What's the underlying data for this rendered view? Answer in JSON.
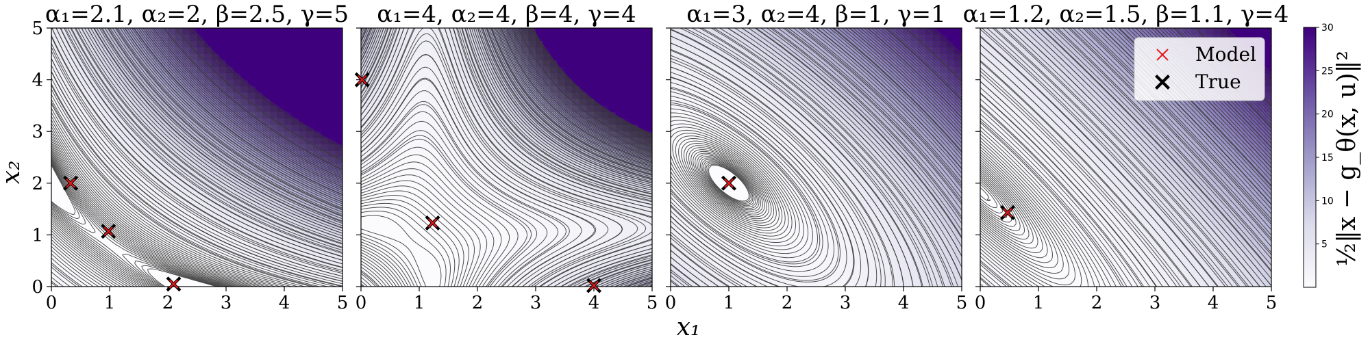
{
  "chart_data": [
    {
      "type": "contour",
      "title": "α₁=2.1, α₂=2, β=2.5, γ=5",
      "params": {
        "alpha1": 2.1,
        "alpha2": 2,
        "beta": 2.5,
        "gamma": 5
      },
      "xlim": [
        0,
        5
      ],
      "ylim": [
        0,
        5
      ],
      "x_ticks": [
        0,
        1,
        2,
        3,
        4,
        5
      ],
      "y_ticks": [
        0,
        1,
        2,
        3,
        4,
        5
      ],
      "points": [
        {
          "x": 0.33,
          "y": 2.0
        },
        {
          "x": 0.98,
          "y": 1.07
        },
        {
          "x": 2.1,
          "y": 0.05
        }
      ]
    },
    {
      "type": "contour",
      "title": "α₁=4, α₂=4, β=4, γ=4",
      "params": {
        "alpha1": 4,
        "alpha2": 4,
        "beta": 4,
        "gamma": 4
      },
      "xlim": [
        0,
        5
      ],
      "ylim": [
        0,
        5
      ],
      "x_ticks": [
        0,
        1,
        2,
        3,
        4,
        5
      ],
      "y_ticks": [
        0,
        1,
        2,
        3,
        4,
        5
      ],
      "points": [
        {
          "x": 0.02,
          "y": 4.0
        },
        {
          "x": 1.23,
          "y": 1.23
        },
        {
          "x": 4.0,
          "y": 0.02
        }
      ]
    },
    {
      "type": "contour",
      "title": "α₁=3, α₂=4, β=1, γ=1",
      "params": {
        "alpha1": 3,
        "alpha2": 4,
        "beta": 1,
        "gamma": 1
      },
      "xlim": [
        0,
        5
      ],
      "ylim": [
        0,
        5
      ],
      "x_ticks": [
        0,
        1,
        2,
        3,
        4,
        5
      ],
      "y_ticks": [
        0,
        1,
        2,
        3,
        4,
        5
      ],
      "points": [
        {
          "x": 1.0,
          "y": 2.0
        }
      ]
    },
    {
      "type": "contour",
      "title": "α₁=1.2, α₂=1.5, β=1.1, γ=4",
      "params": {
        "alpha1": 1.2,
        "alpha2": 1.5,
        "beta": 1.1,
        "gamma": 4
      },
      "xlim": [
        0,
        5
      ],
      "ylim": [
        0,
        5
      ],
      "x_ticks": [
        0,
        1,
        2,
        3,
        4,
        5
      ],
      "y_ticks": [
        0,
        1,
        2,
        3,
        4,
        5
      ],
      "points": [
        {
          "x": 0.47,
          "y": 1.43
        }
      ]
    }
  ],
  "xlabel": "x₁",
  "ylabel": "x₂",
  "legend": {
    "position": "upper-right of last panel",
    "entries": [
      {
        "label": "Model",
        "marker": "thin-x",
        "color": "#e31a1c"
      },
      {
        "label": "True",
        "marker": "thick-x",
        "color": "#000000"
      }
    ]
  },
  "colorbar": {
    "label": "½‖x − g_θ(x, u)‖²",
    "range": [
      0,
      30
    ],
    "ticks": [
      5,
      10,
      15,
      20,
      25,
      30
    ],
    "colormap": "Purples",
    "color_low": "#fcfbfd",
    "color_high": "#3f007d"
  },
  "colors": {
    "contour_line": "#3a3a3a",
    "model_marker": "#e31a1c",
    "true_marker": "#000000"
  }
}
